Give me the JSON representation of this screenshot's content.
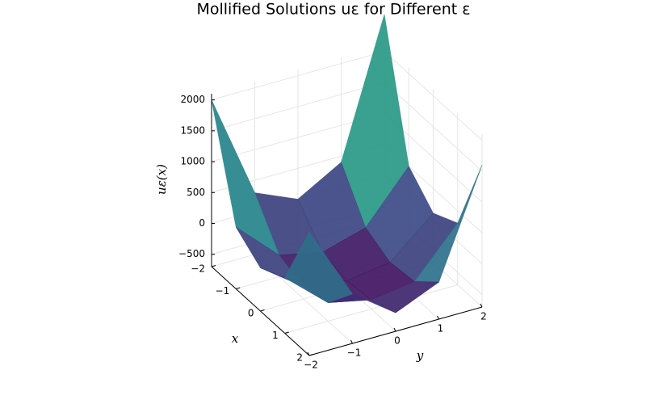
{
  "chart_data": {
    "type": "surface",
    "title": "Mollified Solutions uε for Different ε",
    "x_label": "x",
    "y_label": "y",
    "z_label": "uε(x)",
    "x": [
      -2,
      -1,
      0,
      1,
      2
    ],
    "y": [
      -2,
      -1,
      0,
      1,
      2
    ],
    "z": [
      [
        2000,
        300,
        0,
        400,
        2600
      ],
      [
        300,
        -350,
        -500,
        -300,
        500
      ],
      [
        0,
        -500,
        -600,
        -500,
        100
      ],
      [
        200,
        -400,
        -550,
        -450,
        300
      ],
      [
        1300,
        100,
        -400,
        -100,
        1600
      ]
    ],
    "xlim": [
      -2,
      2
    ],
    "ylim": [
      -2,
      2
    ],
    "zlim": [
      -700,
      2100
    ],
    "xticks": [
      {
        "value": -2,
        "label": "−2"
      },
      {
        "value": -1,
        "label": "−1"
      },
      0,
      1,
      2
    ],
    "yticks": [
      {
        "value": -2,
        "label": "−2"
      },
      {
        "value": -1,
        "label": "−1"
      },
      0,
      1,
      2
    ],
    "zticks": [
      {
        "value": -500,
        "label": "−500"
      },
      0,
      500,
      1000,
      1500,
      2000
    ],
    "colormap": [
      "#440154",
      "#3b528b",
      "#21918c",
      "#5ec962",
      "#fde725"
    ],
    "grid": true
  }
}
